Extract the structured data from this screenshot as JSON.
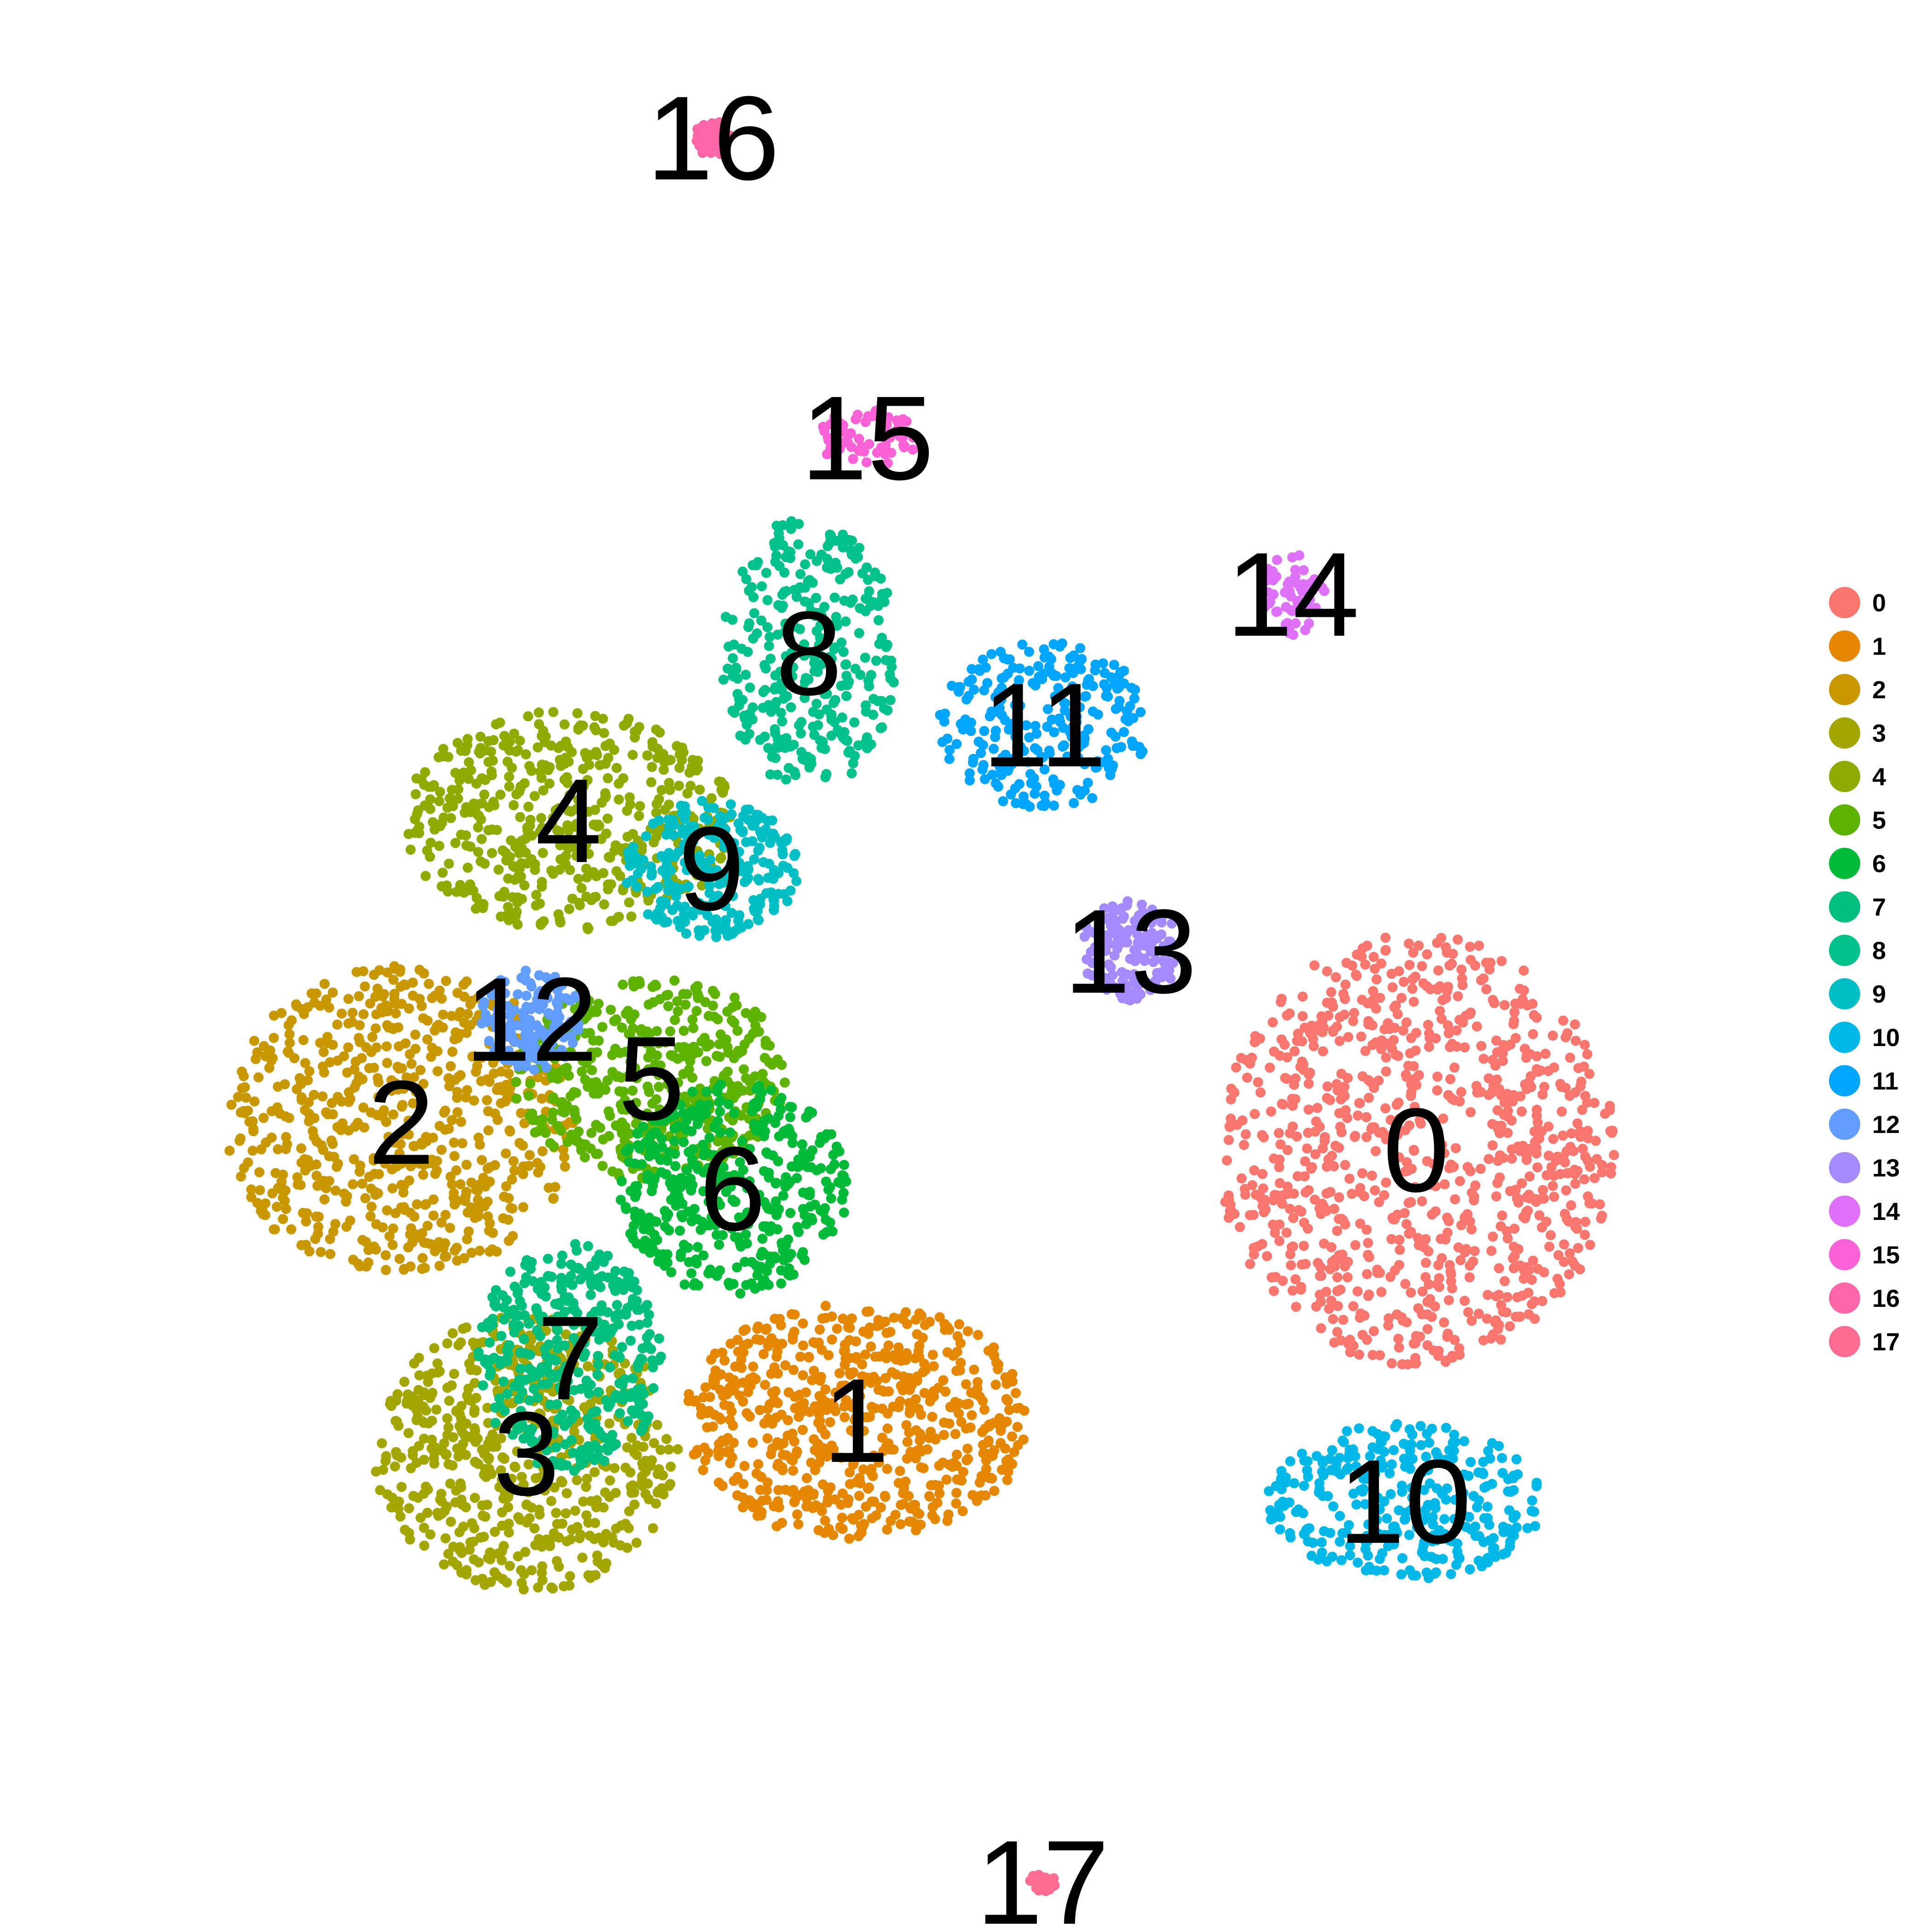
{
  "chart_data": {
    "type": "scatter",
    "title": "",
    "xlabel": "",
    "ylabel": "",
    "axes_visible": false,
    "grid": false,
    "legend_position": "right",
    "xlim": [
      0,
      100
    ],
    "ylim": [
      0,
      100
    ],
    "clusters": [
      {
        "id": "0",
        "color": "#F8766D",
        "center": [
          80.7,
          41.0
        ]
      },
      {
        "id": "1",
        "color": "#E58700",
        "center": [
          46.2,
          26.3
        ]
      },
      {
        "id": "2",
        "color": "#C99800",
        "center": [
          18.2,
          42.5
        ]
      },
      {
        "id": "3",
        "color": "#A3A500",
        "center": [
          25.9,
          24.5
        ]
      },
      {
        "id": "4",
        "color": "#8FAA00",
        "center": [
          28.5,
          58.9
        ]
      },
      {
        "id": "5",
        "color": "#5EB300",
        "center": [
          33.6,
          44.9
        ]
      },
      {
        "id": "6",
        "color": "#00BA38",
        "center": [
          38.6,
          38.9
        ]
      },
      {
        "id": "7",
        "color": "#00BF7D",
        "center": [
          28.6,
          29.7
        ]
      },
      {
        "id": "8",
        "color": "#00C08B",
        "center": [
          43.3,
          68.0
        ]
      },
      {
        "id": "9",
        "color": "#00BFC4",
        "center": [
          37.3,
          56.3
        ]
      },
      {
        "id": "10",
        "color": "#00B8E7",
        "center": [
          80.0,
          21.9
        ]
      },
      {
        "id": "11",
        "color": "#00A5FF",
        "center": [
          57.8,
          64.1
        ]
      },
      {
        "id": "12",
        "color": "#619CFF",
        "center": [
          26.2,
          48.1
        ]
      },
      {
        "id": "13",
        "color": "#A58AFF",
        "center": [
          63.1,
          51.8
        ]
      },
      {
        "id": "14",
        "color": "#DF70F8",
        "center": [
          73.1,
          71.2
        ]
      },
      {
        "id": "15",
        "color": "#FB61D7",
        "center": [
          46.9,
          79.7
        ]
      },
      {
        "id": "16",
        "color": "#FF66A8",
        "center": [
          37.4,
          96.0
        ]
      },
      {
        "id": "17",
        "color": "#FF6C91",
        "center": [
          57.7,
          1.2
        ]
      }
    ],
    "legend": [
      "0",
      "1",
      "2",
      "3",
      "4",
      "5",
      "6",
      "7",
      "8",
      "9",
      "10",
      "11",
      "12",
      "13",
      "14",
      "15",
      "16",
      "17"
    ]
  }
}
